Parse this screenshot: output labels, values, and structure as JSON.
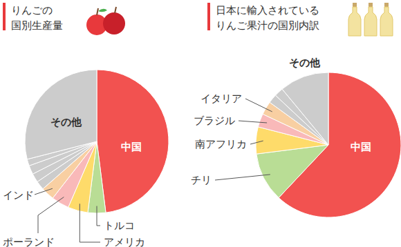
{
  "chart_data": [
    {
      "type": "pie",
      "title": [
        "りんごの",
        "国別生産量"
      ],
      "categories": [
        "中国",
        "トルコ",
        "アメリカ",
        "ポーランド",
        "インド",
        null,
        null,
        null,
        null,
        "その他"
      ],
      "values": [
        48,
        4,
        4.5,
        4,
        3,
        2,
        2,
        2,
        1.5,
        29
      ],
      "colors": [
        "#f25250",
        "#b9dd95",
        "#fedb6a",
        "#f9b9b9",
        "#f8cfa2",
        "#cccccc",
        "#cccccc",
        "#cccccc",
        "#cccccc",
        "#cccccc"
      ]
    },
    {
      "type": "pie",
      "title": [
        "日本に輸入されている",
        "りんご果汁の国別内訳"
      ],
      "categories": [
        "中国",
        "チリ",
        "南アフリカ",
        "ブラジル",
        "イタリア",
        null,
        null,
        "その他"
      ],
      "values": [
        62,
        11,
        6,
        3,
        3,
        2,
        2,
        11
      ],
      "colors": [
        "#f25250",
        "#b9dd95",
        "#fedb6a",
        "#f9b9b9",
        "#f8cfa2",
        "#cccccc",
        "#cccccc",
        "#cccccc"
      ]
    }
  ]
}
